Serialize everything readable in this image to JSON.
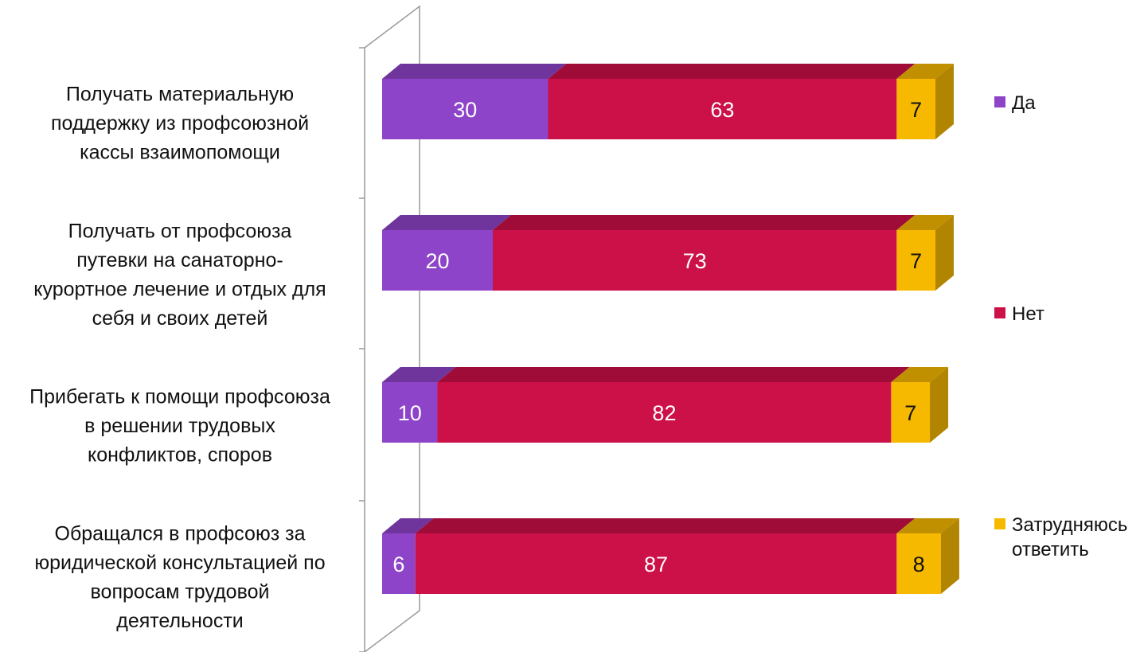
{
  "chart_data": {
    "type": "bar",
    "orientation": "horizontal",
    "stacked": true,
    "style": "3d",
    "categories": [
      "Получать материальную поддержку из профсоюзной кассы взаимопомощи",
      "Получать от профсоюза путевки  на санаторно-курортное лечение и отдых для себя и своих детей",
      "Прибегать к помощи профсоюза в решении трудовых конфликтов, споров",
      "Обращался в профсоюз за юридической консультацией по вопросам трудовой деятельности"
    ],
    "category_lines": [
      [
        "Получать материальную",
        "поддержку из профсоюзной",
        "кассы взаимопомощи"
      ],
      [
        "Получать от профсоюза",
        "путевки  на санаторно-",
        "курортное лечение и отдых для",
        "себя и своих детей"
      ],
      [
        "Прибегать к помощи профсоюза",
        "в решении трудовых",
        "конфликтов, споров"
      ],
      [
        "Обращался в профсоюз за",
        "юридической консультацией по",
        "вопросам трудовой",
        "деятельности"
      ]
    ],
    "series": [
      {
        "name": "Да",
        "values": [
          30,
          20,
          10,
          6
        ],
        "color": "#8e44c9"
      },
      {
        "name": "Нет",
        "values": [
          63,
          73,
          82,
          87
        ],
        "color": "#cc1048"
      },
      {
        "name": "Затрудняюсь ответить",
        "values": [
          7,
          7,
          7,
          8
        ],
        "color": "#f7b900"
      }
    ],
    "legend_lines": [
      [
        "Да"
      ],
      [
        "Нет"
      ],
      [
        "Затрудняюсь",
        "ответить"
      ]
    ],
    "legend_position": "right",
    "data_labels": true,
    "grid": false,
    "xlim": [
      0,
      100
    ]
  }
}
